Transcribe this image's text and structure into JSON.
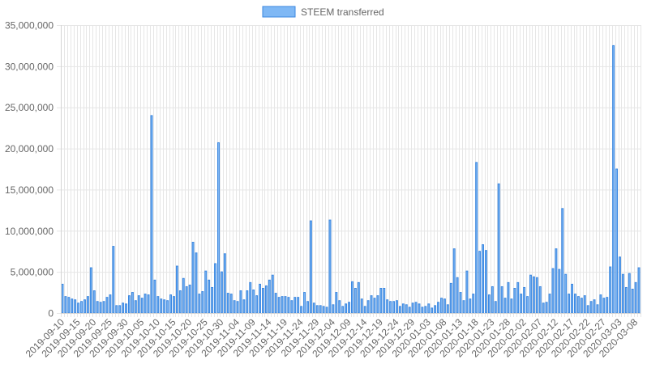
{
  "chart_data": {
    "type": "bar",
    "legend": {
      "label": "STEEM transferred",
      "position": "top-center"
    },
    "colors": {
      "bar_fill": "#7fb8f5",
      "bar_stroke": "#3b87e0",
      "grid": "#e6e6e6",
      "axis_text": "#666666"
    },
    "grid": true,
    "ylim": [
      0,
      35000000
    ],
    "y_ticks": [
      "0",
      "5,000,000",
      "10,000,000",
      "15,000,000",
      "20,000,000",
      "25,000,000",
      "30,000,000",
      "35,000,000"
    ],
    "x_start": "2019-09-10",
    "x_end": "2020-03-08",
    "x_tick_labels": [
      "2019-09-10",
      "2019-09-15",
      "2019-09-20",
      "2019-09-25",
      "2019-09-30",
      "2019-10-05",
      "2019-10-10",
      "2019-10-15",
      "2019-10-20",
      "2019-10-25",
      "2019-10-30",
      "2019-11-04",
      "2019-11-09",
      "2019-11-14",
      "2019-11-19",
      "2019-11-24",
      "2019-11-29",
      "2019-12-04",
      "2019-12-09",
      "2019-12-14",
      "2019-12-19",
      "2019-12-24",
      "2019-12-29",
      "2020-01-03",
      "2020-01-08",
      "2020-01-13",
      "2020-01-18",
      "2020-01-23",
      "2020-01-28",
      "2020-02-02",
      "2020-02-07",
      "2020-02-12",
      "2020-02-17",
      "2020-02-22",
      "2020-02-27",
      "2020-03-03",
      "2020-03-08"
    ],
    "values": [
      3500000,
      2000000,
      1900000,
      1700000,
      1600000,
      1200000,
      1400000,
      1600000,
      2000000,
      5500000,
      2700000,
      1400000,
      1300000,
      1400000,
      1900000,
      2200000,
      8100000,
      900000,
      900000,
      1200000,
      1100000,
      2100000,
      2500000,
      1500000,
      2100000,
      1800000,
      2300000,
      2200000,
      24000000,
      4000000,
      2000000,
      1700000,
      1600000,
      1500000,
      2200000,
      2000000,
      5700000,
      2700000,
      4200000,
      3200000,
      3400000,
      8600000,
      7300000,
      2300000,
      2600000,
      5100000,
      4000000,
      3100000,
      6000000,
      20700000,
      5000000,
      7200000,
      2400000,
      2300000,
      1500000,
      1400000,
      2700000,
      1600000,
      2700000,
      3700000,
      2800000,
      2100000,
      3500000,
      3000000,
      3300000,
      4000000,
      4600000,
      2400000,
      1900000,
      2000000,
      2000000,
      1900000,
      1500000,
      1900000,
      1900000,
      800000,
      2500000,
      1400000,
      11200000,
      1200000,
      900000,
      900000,
      800000,
      700000,
      11300000,
      1000000,
      2500000,
      1500000,
      800000,
      1100000,
      1300000,
      3800000,
      3000000,
      3700000,
      1700000,
      800000,
      1500000,
      2100000,
      1800000,
      2100000,
      3000000,
      3000000,
      1600000,
      1400000,
      1400000,
      1500000,
      800000,
      1100000,
      1000000,
      700000,
      1200000,
      1300000,
      1100000,
      700000,
      800000,
      1100000,
      600000,
      900000,
      1300000,
      1800000,
      1700000,
      1000000,
      3600000,
      7800000,
      4300000,
      2500000,
      1500000,
      5100000,
      1700000,
      2300000,
      18300000,
      7500000,
      8300000,
      7600000,
      2200000,
      3200000,
      1400000,
      15700000,
      3200000,
      1800000,
      3700000,
      1700000,
      3000000,
      3700000,
      2300000,
      3100000,
      2000000,
      4600000,
      4400000,
      4300000,
      3200000,
      1200000,
      1300000,
      2300000,
      5400000,
      7800000,
      5300000,
      12700000,
      4700000,
      2300000,
      3500000,
      2300000,
      2000000,
      1800000,
      2100000,
      900000,
      1400000,
      1600000,
      1000000,
      2200000,
      1800000,
      1900000,
      5600000,
      32500000,
      17500000,
      6800000,
      4700000,
      3100000,
      4800000,
      2900000,
      3700000,
      5500000
    ]
  }
}
